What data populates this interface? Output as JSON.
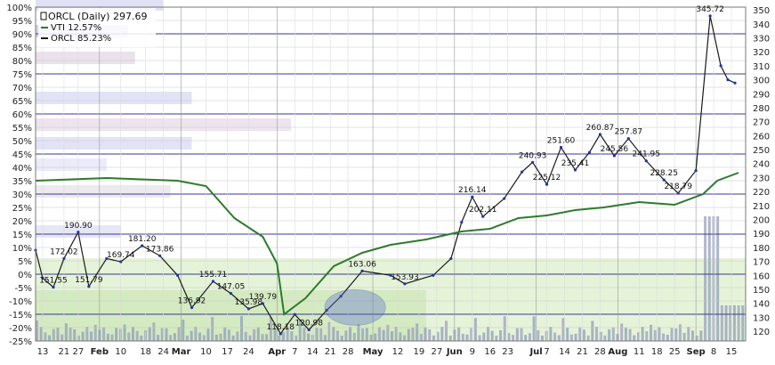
{
  "chart_data": {
    "type": "line",
    "title": "ORCL (Daily) 297.69",
    "legend": [
      {
        "name": "VTI 12.57%",
        "color": "#2f7a2f"
      },
      {
        "name": "ORCL 85.23%",
        "color": "#1a1a1a"
      }
    ],
    "legend_placement": "top-left",
    "grid": true,
    "y_left": {
      "ticks": [
        "100%",
        "95%",
        "90%",
        "85%",
        "80%",
        "75%",
        "70%",
        "65%",
        "60%",
        "55%",
        "50%",
        "45%",
        "40%",
        "35%",
        "30%",
        "25%",
        "20%",
        "15%",
        "10%",
        "5%",
        "0%",
        "-5%",
        "-10%",
        "-15%",
        "-20%",
        "-25%"
      ],
      "range": [
        -25,
        100
      ]
    },
    "y_right": {
      "ticks": [
        "350",
        "340",
        "330",
        "320",
        "310",
        "300",
        "290",
        "280",
        "270",
        "260",
        "250",
        "240",
        "230",
        "220",
        "210",
        "200",
        "190",
        "180",
        "170",
        "160",
        "150",
        "140",
        "130",
        "120"
      ],
      "range": [
        113,
        352
      ]
    },
    "x_ticks": [
      {
        "label": "13",
        "t": 0.01
      },
      {
        "label": "21",
        "t": 0.04
      },
      {
        "label": "27",
        "t": 0.06
      },
      {
        "label": "Feb",
        "t": 0.09,
        "month": true
      },
      {
        "label": "10",
        "t": 0.12
      },
      {
        "label": "18",
        "t": 0.155
      },
      {
        "label": "24",
        "t": 0.18
      },
      {
        "label": "Mar",
        "t": 0.205,
        "month": true
      },
      {
        "label": "10",
        "t": 0.24
      },
      {
        "label": "17",
        "t": 0.27
      },
      {
        "label": "24",
        "t": 0.3
      },
      {
        "label": "Apr",
        "t": 0.34,
        "month": true
      },
      {
        "label": "7",
        "t": 0.365
      },
      {
        "label": "14",
        "t": 0.39
      },
      {
        "label": "21",
        "t": 0.415
      },
      {
        "label": "28",
        "t": 0.44
      },
      {
        "label": "May",
        "t": 0.475,
        "month": true
      },
      {
        "label": "12",
        "t": 0.51
      },
      {
        "label": "19",
        "t": 0.54
      },
      {
        "label": "27",
        "t": 0.565
      },
      {
        "label": "Jun",
        "t": 0.59,
        "month": true
      },
      {
        "label": "9",
        "t": 0.615
      },
      {
        "label": "16",
        "t": 0.64
      },
      {
        "label": "23",
        "t": 0.665
      },
      {
        "label": "Jul",
        "t": 0.705,
        "month": true
      },
      {
        "label": "7",
        "t": 0.72
      },
      {
        "label": "14",
        "t": 0.745
      },
      {
        "label": "21",
        "t": 0.77
      },
      {
        "label": "28",
        "t": 0.795
      },
      {
        "label": "Aug",
        "t": 0.82,
        "month": true
      },
      {
        "label": "11",
        "t": 0.85
      },
      {
        "label": "18",
        "t": 0.875
      },
      {
        "label": "25",
        "t": 0.9
      },
      {
        "label": "Sep",
        "t": 0.93,
        "month": true
      },
      {
        "label": "8",
        "t": 0.955
      },
      {
        "label": "15",
        "t": 0.98
      }
    ],
    "series": [
      {
        "name": "ORCL",
        "color": "#1a1a1a",
        "points": [
          [
            0.0,
            178
          ],
          [
            0.01,
            158
          ],
          [
            0.025,
            151.5
          ],
          [
            0.04,
            172
          ],
          [
            0.06,
            190.9
          ],
          [
            0.075,
            152
          ],
          [
            0.1,
            172
          ],
          [
            0.12,
            169.7
          ],
          [
            0.15,
            181.2
          ],
          [
            0.175,
            174
          ],
          [
            0.2,
            160
          ],
          [
            0.22,
            136.9
          ],
          [
            0.25,
            155.7
          ],
          [
            0.275,
            147
          ],
          [
            0.3,
            136
          ],
          [
            0.32,
            139.8
          ],
          [
            0.345,
            118.2
          ],
          [
            0.365,
            132
          ],
          [
            0.385,
            121
          ],
          [
            0.41,
            135
          ],
          [
            0.43,
            145
          ],
          [
            0.46,
            163.1
          ],
          [
            0.5,
            160
          ],
          [
            0.52,
            153.9
          ],
          [
            0.56,
            160
          ],
          [
            0.585,
            172
          ],
          [
            0.6,
            198
          ],
          [
            0.615,
            216.1
          ],
          [
            0.63,
            202.1
          ],
          [
            0.66,
            215
          ],
          [
            0.685,
            234
          ],
          [
            0.7,
            240.9
          ],
          [
            0.72,
            225.1
          ],
          [
            0.74,
            251.6
          ],
          [
            0.76,
            235.4
          ],
          [
            0.78,
            248
          ],
          [
            0.795,
            260.9
          ],
          [
            0.815,
            245.6
          ],
          [
            0.835,
            257.9
          ],
          [
            0.86,
            241.9
          ],
          [
            0.885,
            228.3
          ],
          [
            0.905,
            218.8
          ],
          [
            0.93,
            235
          ],
          [
            0.95,
            345.7
          ],
          [
            0.965,
            310
          ],
          [
            0.975,
            300
          ],
          [
            0.985,
            297.7
          ]
        ]
      },
      {
        "name": "VTI",
        "color": "#2f7a2f",
        "points": [
          [
            0.0,
            35
          ],
          [
            0.1,
            36
          ],
          [
            0.2,
            35
          ],
          [
            0.24,
            33
          ],
          [
            0.28,
            21
          ],
          [
            0.32,
            14
          ],
          [
            0.34,
            4
          ],
          [
            0.35,
            -15
          ],
          [
            0.38,
            -9
          ],
          [
            0.42,
            3
          ],
          [
            0.46,
            8
          ],
          [
            0.5,
            11
          ],
          [
            0.55,
            13
          ],
          [
            0.6,
            16
          ],
          [
            0.64,
            17
          ],
          [
            0.68,
            21
          ],
          [
            0.72,
            22
          ],
          [
            0.76,
            24
          ],
          [
            0.8,
            25
          ],
          [
            0.85,
            27
          ],
          [
            0.9,
            26
          ],
          [
            0.94,
            30
          ],
          [
            0.96,
            35
          ],
          [
            0.99,
            38
          ]
        ]
      }
    ],
    "annotations": [
      "190.90",
      "151.55",
      "172.02",
      "151.79",
      "169.74",
      "181.20",
      "173.86",
      "136.92",
      "155.71",
      "135.98",
      "147.05",
      "139.79",
      "118.18",
      "120.98",
      "163.06",
      "153.93",
      "216.14",
      "202.11",
      "240.93",
      "225.12",
      "251.60",
      "235.41",
      "260.87",
      "245.56",
      "257.87",
      "241.95",
      "228.25",
      "218.79",
      "345.72"
    ]
  }
}
